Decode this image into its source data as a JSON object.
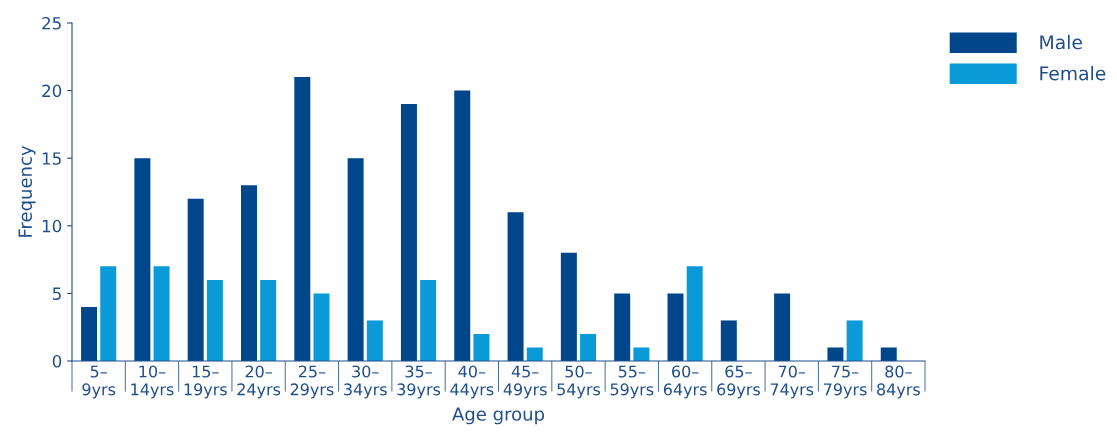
{
  "chart_data": {
    "type": "bar",
    "xlabel": "Age group",
    "ylabel": "Frequency",
    "categories": [
      "5–\n9yrs",
      "10–\n14yrs",
      "15–\n19yrs",
      "20–\n24yrs",
      "25–\n29yrs",
      "30–\n34yrs",
      "35–\n39yrs",
      "40–\n44yrs",
      "45–\n49yrs",
      "50–\n54yrs",
      "55–\n59yrs",
      "60–\n64yrs",
      "65–\n69yrs",
      "70–\n74yrs",
      "75–\n79yrs",
      "80–\n84yrs"
    ],
    "series": [
      {
        "name": "Male",
        "color": "#00468b",
        "values": [
          4,
          15,
          12,
          13,
          21,
          15,
          19,
          20,
          11,
          8,
          5,
          5,
          3,
          5,
          1,
          1
        ]
      },
      {
        "name": "Female",
        "color": "#0a9ad8",
        "values": [
          7,
          7,
          6,
          6,
          5,
          3,
          6,
          2,
          1,
          2,
          1,
          7,
          0,
          0,
          3,
          0
        ]
      }
    ],
    "ylim": [
      0,
      25
    ],
    "yticks": [
      0,
      5,
      10,
      15,
      20,
      25
    ],
    "grid": false,
    "legend": "top right"
  }
}
